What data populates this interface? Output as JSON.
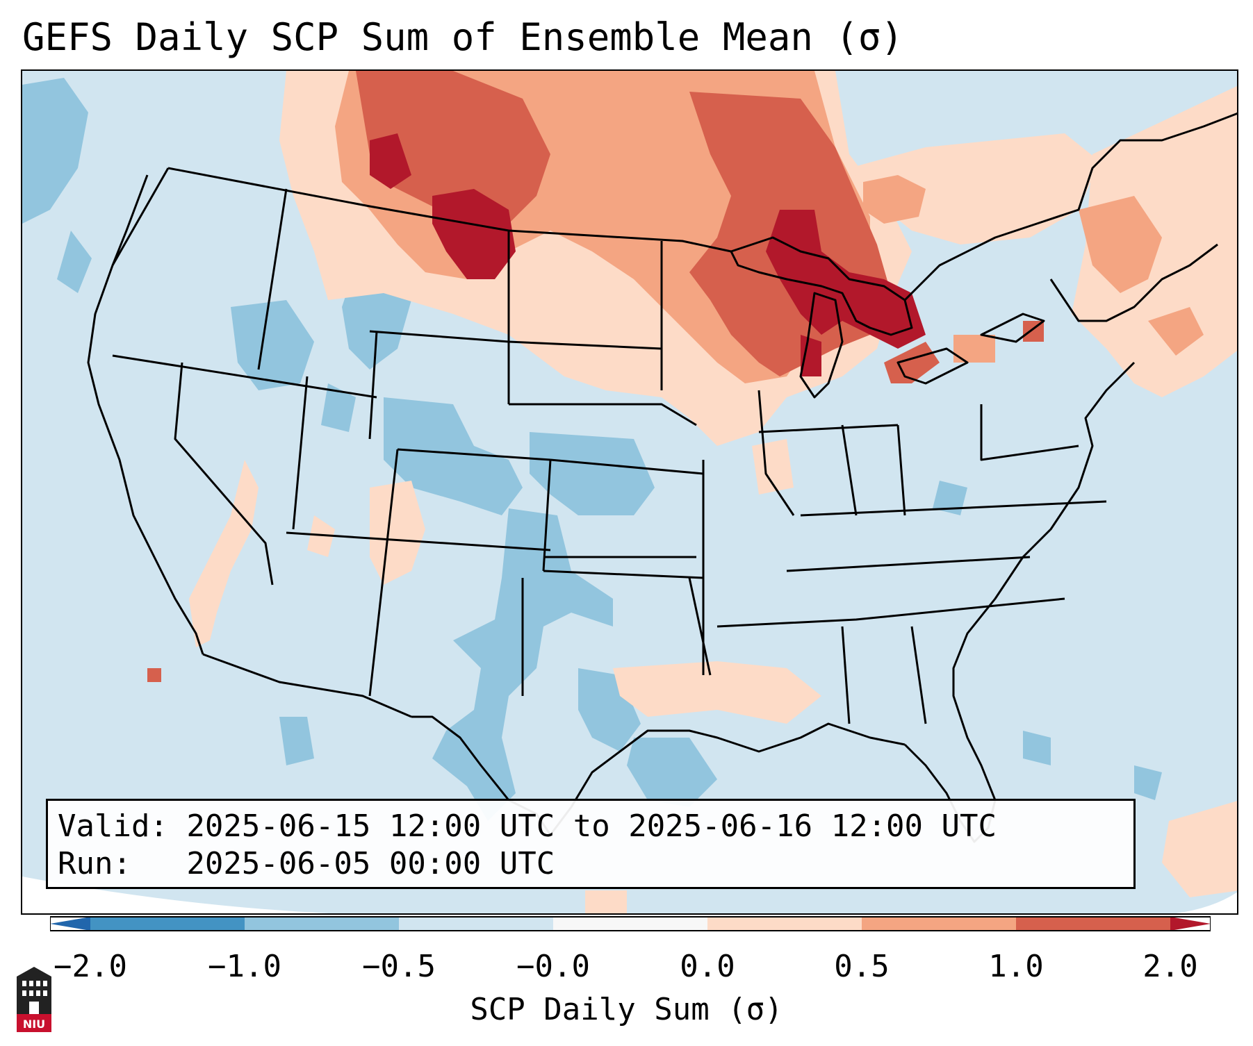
{
  "title": "GEFS Daily SCP Sum of Ensemble Mean (σ)",
  "info": {
    "valid_line": "Valid: 2025-06-15 12:00 UTC to 2025-06-16 12:00 UTC",
    "run_line": "Run:   2025-06-05 00:00 UTC"
  },
  "colorbar": {
    "title": "SCP Daily Sum (σ)",
    "tick_labels": [
      "−2.0",
      "−1.0",
      "−0.5",
      "−0.0",
      "0.0",
      "0.5",
      "1.0",
      "2.0"
    ],
    "colors": {
      "under": "#2166ac",
      "bins": [
        "#4393c3",
        "#92c5de",
        "#d1e5f0",
        "#f7f7f7",
        "#fddbc7",
        "#f4a582",
        "#d6604d"
      ],
      "over": "#b2182b"
    }
  },
  "map": {
    "background_color": "#d1e5f0",
    "field_regions": [
      {
        "label": "northern plains max",
        "value": 2.0
      },
      {
        "label": "great lakes max",
        "value": 2.0
      },
      {
        "label": "southwest texas min",
        "value": -1.0
      },
      {
        "label": "high plains min",
        "value": -1.0
      }
    ]
  },
  "logo": {
    "text": "NIU"
  }
}
